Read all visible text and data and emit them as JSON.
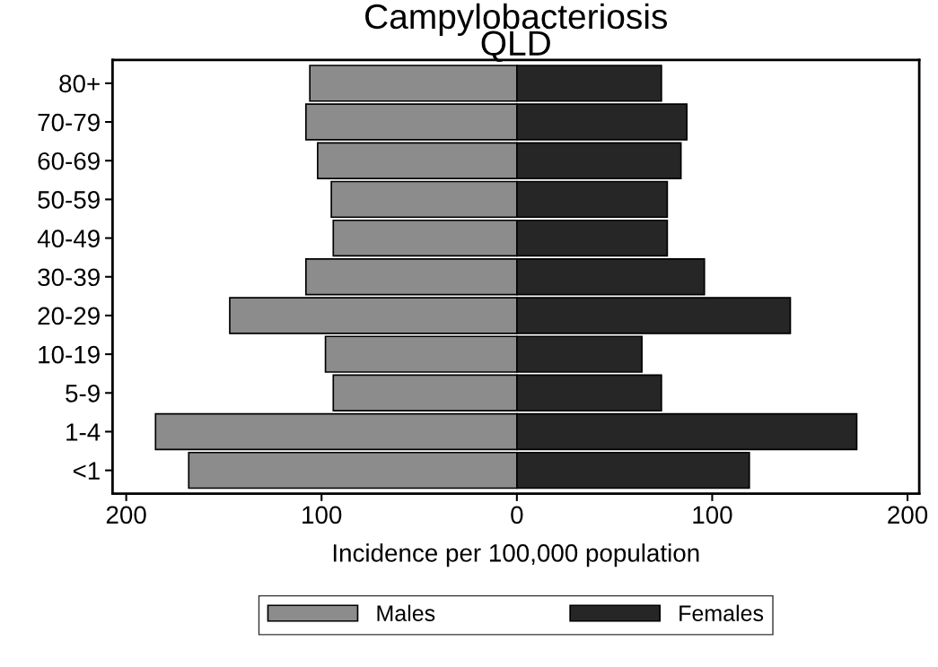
{
  "chart_data": {
    "type": "bar",
    "orientation": "horizontal",
    "title": "Campylobacteriosis",
    "subtitle": "QLD",
    "xlabel": "Incidence per 100,000 population",
    "categories": [
      "80+",
      "70-79",
      "60-69",
      "50-59",
      "40-49",
      "30-39",
      "20-29",
      "10-19",
      "5-9",
      "1-4",
      "<1"
    ],
    "series": [
      {
        "name": "Males",
        "color": "#8c8c8c",
        "values": [
          -106,
          -108,
          -102,
          -95,
          -94,
          -108,
          -147,
          -98,
          -94,
          -185,
          -168
        ]
      },
      {
        "name": "Females",
        "color": "#262626",
        "values": [
          74,
          87,
          84,
          77,
          77,
          96,
          140,
          64,
          74,
          174,
          119
        ]
      }
    ],
    "xlim": [
      -207,
      206
    ],
    "xticks": [
      {
        "value": -200,
        "label": "200"
      },
      {
        "value": -100,
        "label": "100"
      },
      0,
      100,
      200
    ],
    "stacked": true,
    "grid": false,
    "legend": "bottom"
  }
}
